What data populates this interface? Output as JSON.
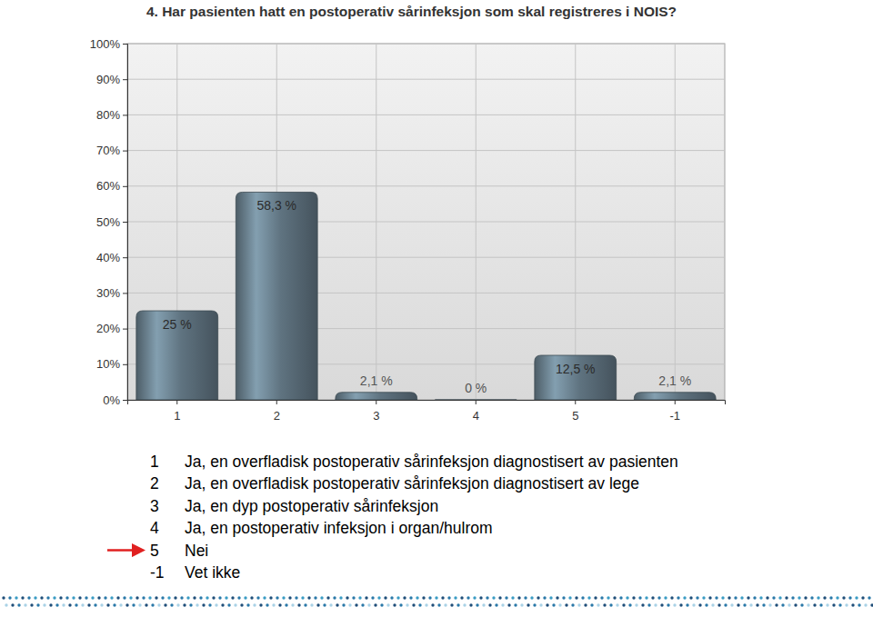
{
  "chart_data": {
    "type": "bar",
    "title": "4. Har pasienten hatt en postoperativ sårinfeksjon som skal registreres i NOIS?",
    "categories": [
      "1",
      "2",
      "3",
      "4",
      "5",
      "-1"
    ],
    "values": [
      25,
      58.3,
      2.1,
      0,
      12.5,
      2.1
    ],
    "value_labels": [
      "25 %",
      "58,3 %",
      "2,1 %",
      "0 %",
      "12,5 %",
      "2,1 %"
    ],
    "color": "#5f7380",
    "ylim": [
      0,
      100
    ],
    "yticks": [
      {
        "value": 0,
        "label": "0%"
      },
      {
        "value": 10,
        "label": "10%"
      },
      {
        "value": 20,
        "label": "20%"
      },
      {
        "value": 30,
        "label": "30%"
      },
      {
        "value": 40,
        "label": "40%"
      },
      {
        "value": 50,
        "label": "50%"
      },
      {
        "value": 60,
        "label": "60%"
      },
      {
        "value": 70,
        "label": "70%"
      },
      {
        "value": 80,
        "label": "80%"
      },
      {
        "value": 90,
        "label": "90%"
      },
      {
        "value": 100,
        "label": "100%"
      }
    ],
    "grid": true,
    "data_labels": true,
    "annotations": [
      {
        "label": "1",
        "text": "Ja, en overfladisk postoperativ sårinfeksjon diagnostisert av pasienten"
      },
      {
        "label": "2",
        "text": "Ja, en overfladisk postoperativ sårinfeksjon diagnostisert av lege"
      },
      {
        "label": "3",
        "text": "Ja, en dyp postoperativ sårinfeksjon"
      },
      {
        "label": "4",
        "text": "Ja, en postoperativ infeksjon i organ/hulrom"
      },
      {
        "label": "5",
        "text": "Nei"
      },
      {
        "label": "-1",
        "text": "Vet ikke"
      }
    ]
  }
}
